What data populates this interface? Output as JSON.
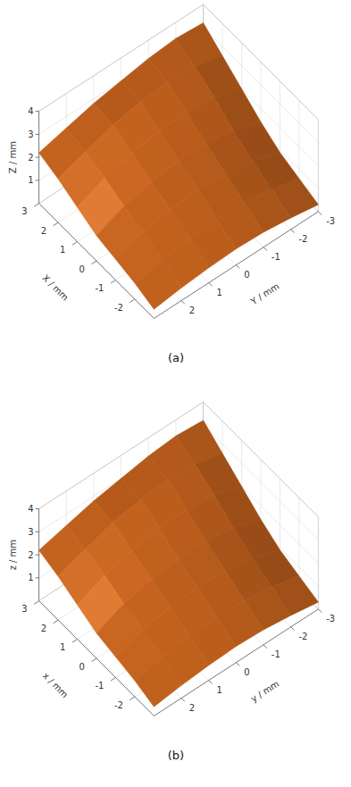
{
  "chart_data": [
    {
      "type": "surface",
      "title": "(a)",
      "xlabel": "X / mm",
      "ylabel": "Y / mm",
      "zlabel": "Z / mm",
      "x": [
        -3,
        -2,
        -1,
        0,
        1,
        2,
        3
      ],
      "y": [
        -3,
        -2,
        -1,
        0,
        1,
        2,
        3
      ],
      "z": [
        [
          0.3,
          0.5,
          0.65,
          0.7,
          0.65,
          0.55,
          0.4
        ],
        [
          0.6,
          0.9,
          1.1,
          1.15,
          1.1,
          0.95,
          0.7
        ],
        [
          0.9,
          1.3,
          1.55,
          1.6,
          1.5,
          1.3,
          0.9
        ],
        [
          1.4,
          1.8,
          2.0,
          2.0,
          1.9,
          1.6,
          1.1
        ],
        [
          2.0,
          2.4,
          2.5,
          2.5,
          2.3,
          2.0,
          1.5
        ],
        [
          2.6,
          2.9,
          3.0,
          2.9,
          2.7,
          2.3,
          1.9
        ],
        [
          3.2,
          3.3,
          3.2,
          3.0,
          2.8,
          2.5,
          2.2
        ]
      ],
      "xlim": [
        -3,
        3
      ],
      "ylim": [
        -3,
        3
      ],
      "zlim": [
        0,
        4
      ],
      "xticks": [
        -2,
        -1,
        0,
        1,
        2,
        3
      ],
      "yticks": [
        -3,
        -2,
        -1,
        0,
        1,
        2
      ],
      "zticks": [
        1,
        2,
        3,
        4
      ],
      "grid": true,
      "color": "#c8641e"
    },
    {
      "type": "surface",
      "title": "(b)",
      "xlabel": "x / mm",
      "ylabel": "y / mm",
      "zlabel": "z / mm",
      "x": [
        -3,
        -2,
        -1,
        0,
        1,
        2,
        3
      ],
      "y": [
        -3,
        -2,
        -1,
        0,
        1,
        2,
        3
      ],
      "z": [
        [
          0.3,
          0.5,
          0.65,
          0.7,
          0.65,
          0.55,
          0.4
        ],
        [
          0.6,
          0.9,
          1.1,
          1.15,
          1.1,
          0.95,
          0.7
        ],
        [
          0.9,
          1.3,
          1.55,
          1.6,
          1.5,
          1.3,
          0.9
        ],
        [
          1.4,
          1.8,
          2.0,
          2.0,
          1.9,
          1.6,
          1.1
        ],
        [
          2.0,
          2.4,
          2.5,
          2.5,
          2.3,
          2.0,
          1.5
        ],
        [
          2.6,
          2.9,
          3.0,
          2.9,
          2.7,
          2.3,
          1.9
        ],
        [
          3.2,
          3.3,
          3.2,
          3.0,
          2.8,
          2.5,
          2.2
        ]
      ],
      "xlim": [
        -3,
        3
      ],
      "ylim": [
        -3,
        3
      ],
      "zlim": [
        0,
        4
      ],
      "xticks": [
        -2,
        -1,
        0,
        1,
        2,
        3
      ],
      "yticks": [
        -3,
        -2,
        -1,
        0,
        1,
        2
      ],
      "zticks": [
        1,
        2,
        3,
        4
      ],
      "grid": true,
      "color": "#c8641e"
    }
  ]
}
